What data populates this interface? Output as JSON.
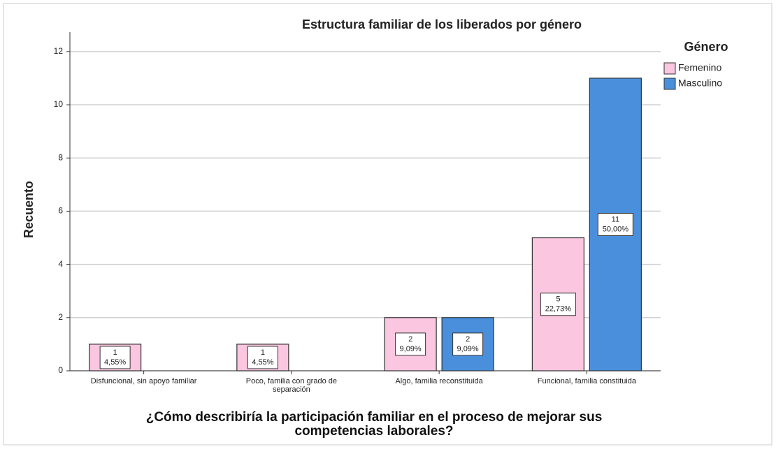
{
  "chart_data": {
    "type": "bar",
    "title": "Estructura familiar de los liberados por género",
    "x_label": "¿Cómo describiría la participación familiar en el proceso de mejorar sus competencias laborales?",
    "y_label": "Recuento",
    "legend_title": "Género",
    "legend_position": "right",
    "categories": [
      "Disfuncional, sin apoyo familiar",
      "Poco, familia con grado de separación",
      "Algo, familia reconstituida",
      "Funcional, familia constituida"
    ],
    "series": [
      {
        "name": "Femenino",
        "color": "#fbc6e0",
        "values": [
          1,
          1,
          2,
          5
        ],
        "percent_labels": [
          "4,55%",
          "4,55%",
          "9,09%",
          "22,73%"
        ]
      },
      {
        "name": "Masculino",
        "color": "#4a8fdc",
        "values": [
          null,
          null,
          2,
          11
        ],
        "percent_labels": [
          null,
          null,
          "9,09%",
          "50,00%"
        ]
      }
    ],
    "ylim": [
      0,
      12.6
    ],
    "yticks": [
      0,
      2,
      4,
      6,
      8,
      10,
      12
    ],
    "grid": true
  }
}
